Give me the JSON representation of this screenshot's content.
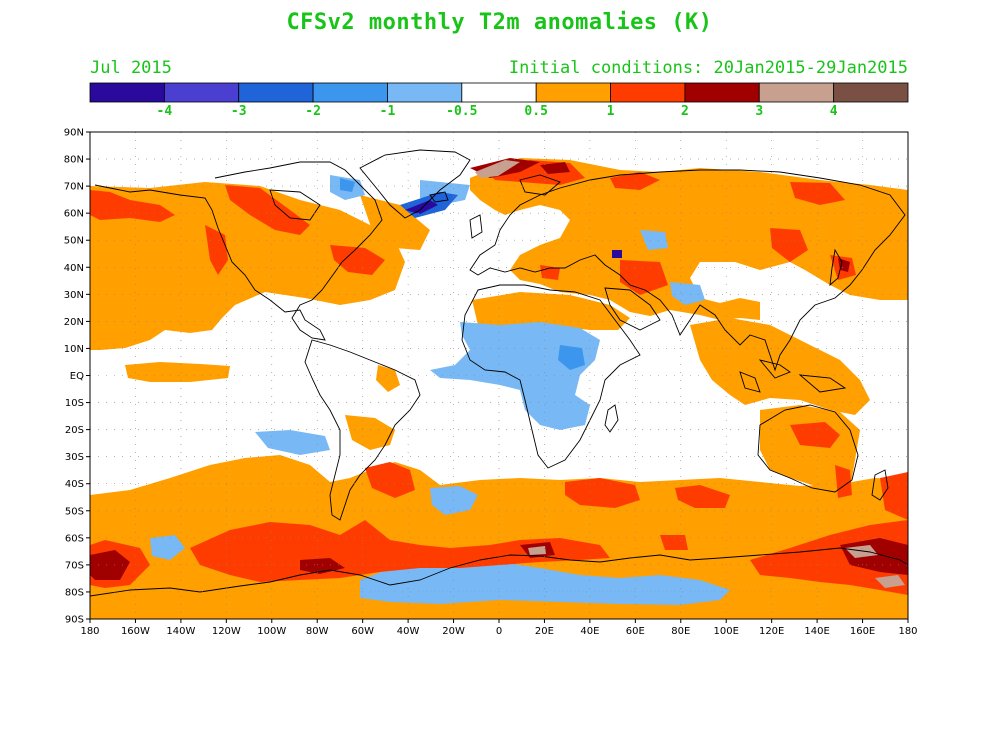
{
  "title": "CFSv2 monthly T2m anomalies (K)",
  "subtitle_left": "Jul 2015",
  "subtitle_right": "Initial conditions: 20Jan2015-29Jan2015",
  "colorbar": {
    "colors": [
      "#2a0a9c",
      "#4a3fd0",
      "#1f64d8",
      "#3c96ee",
      "#78b8f4",
      "#ffffff",
      "#ff9f00",
      "#ff3c00",
      "#a00000",
      "#c8a090",
      "#7a5044"
    ],
    "labels": [
      "-4",
      "-3",
      "-2",
      "-1",
      "-0.5",
      "0.5",
      "1",
      "2",
      "3",
      "4"
    ]
  },
  "colors": {
    "warm1": "#ff9f00",
    "warm2": "#ff3c00",
    "warm3": "#a00000",
    "warm4": "#c8a090",
    "cool1": "#78b8f4",
    "cool2": "#3c96ee",
    "cool3": "#1f64d8",
    "cool4": "#2a0a9c"
  },
  "axes": {
    "lat_labels": [
      "90N",
      "80N",
      "70N",
      "60N",
      "50N",
      "40N",
      "30N",
      "20N",
      "10N",
      "EQ",
      "10S",
      "20S",
      "30S",
      "40S",
      "50S",
      "60S",
      "70S",
      "80S",
      "90S"
    ],
    "lon_labels": [
      "180",
      "160W",
      "140W",
      "120W",
      "100W",
      "80W",
      "60W",
      "40W",
      "20W",
      "0",
      "20E",
      "40E",
      "60E",
      "80E",
      "100E",
      "120E",
      "140E",
      "160E",
      "180"
    ]
  }
}
